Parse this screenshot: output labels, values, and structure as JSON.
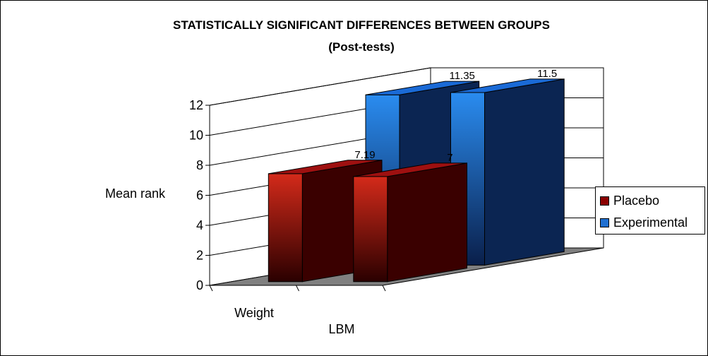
{
  "chart_data": {
    "type": "bar",
    "title": "STATISTICALLY SIGNIFICANT DIFFERENCES BETWEEN GROUPS",
    "subtitle": "(Post-tests)",
    "ylabel": "Mean rank",
    "xlabel": "",
    "categories": [
      "Weight",
      "LBM"
    ],
    "ylim": [
      0,
      12
    ],
    "yticks": [
      "0",
      "2",
      "4",
      "6",
      "8",
      "10",
      "12"
    ],
    "series": [
      {
        "name": "Placebo",
        "values": [
          7.19,
          7
        ],
        "labels": [
          "7.19",
          "7"
        ],
        "color": "#8b0000"
      },
      {
        "name": "Experimental",
        "values": [
          11.35,
          11.5
        ],
        "labels": [
          "11.35",
          "11.5"
        ],
        "color": "#1f6fd1"
      }
    ],
    "grid": true,
    "legend_position": "right",
    "floor_color": "#808080"
  }
}
